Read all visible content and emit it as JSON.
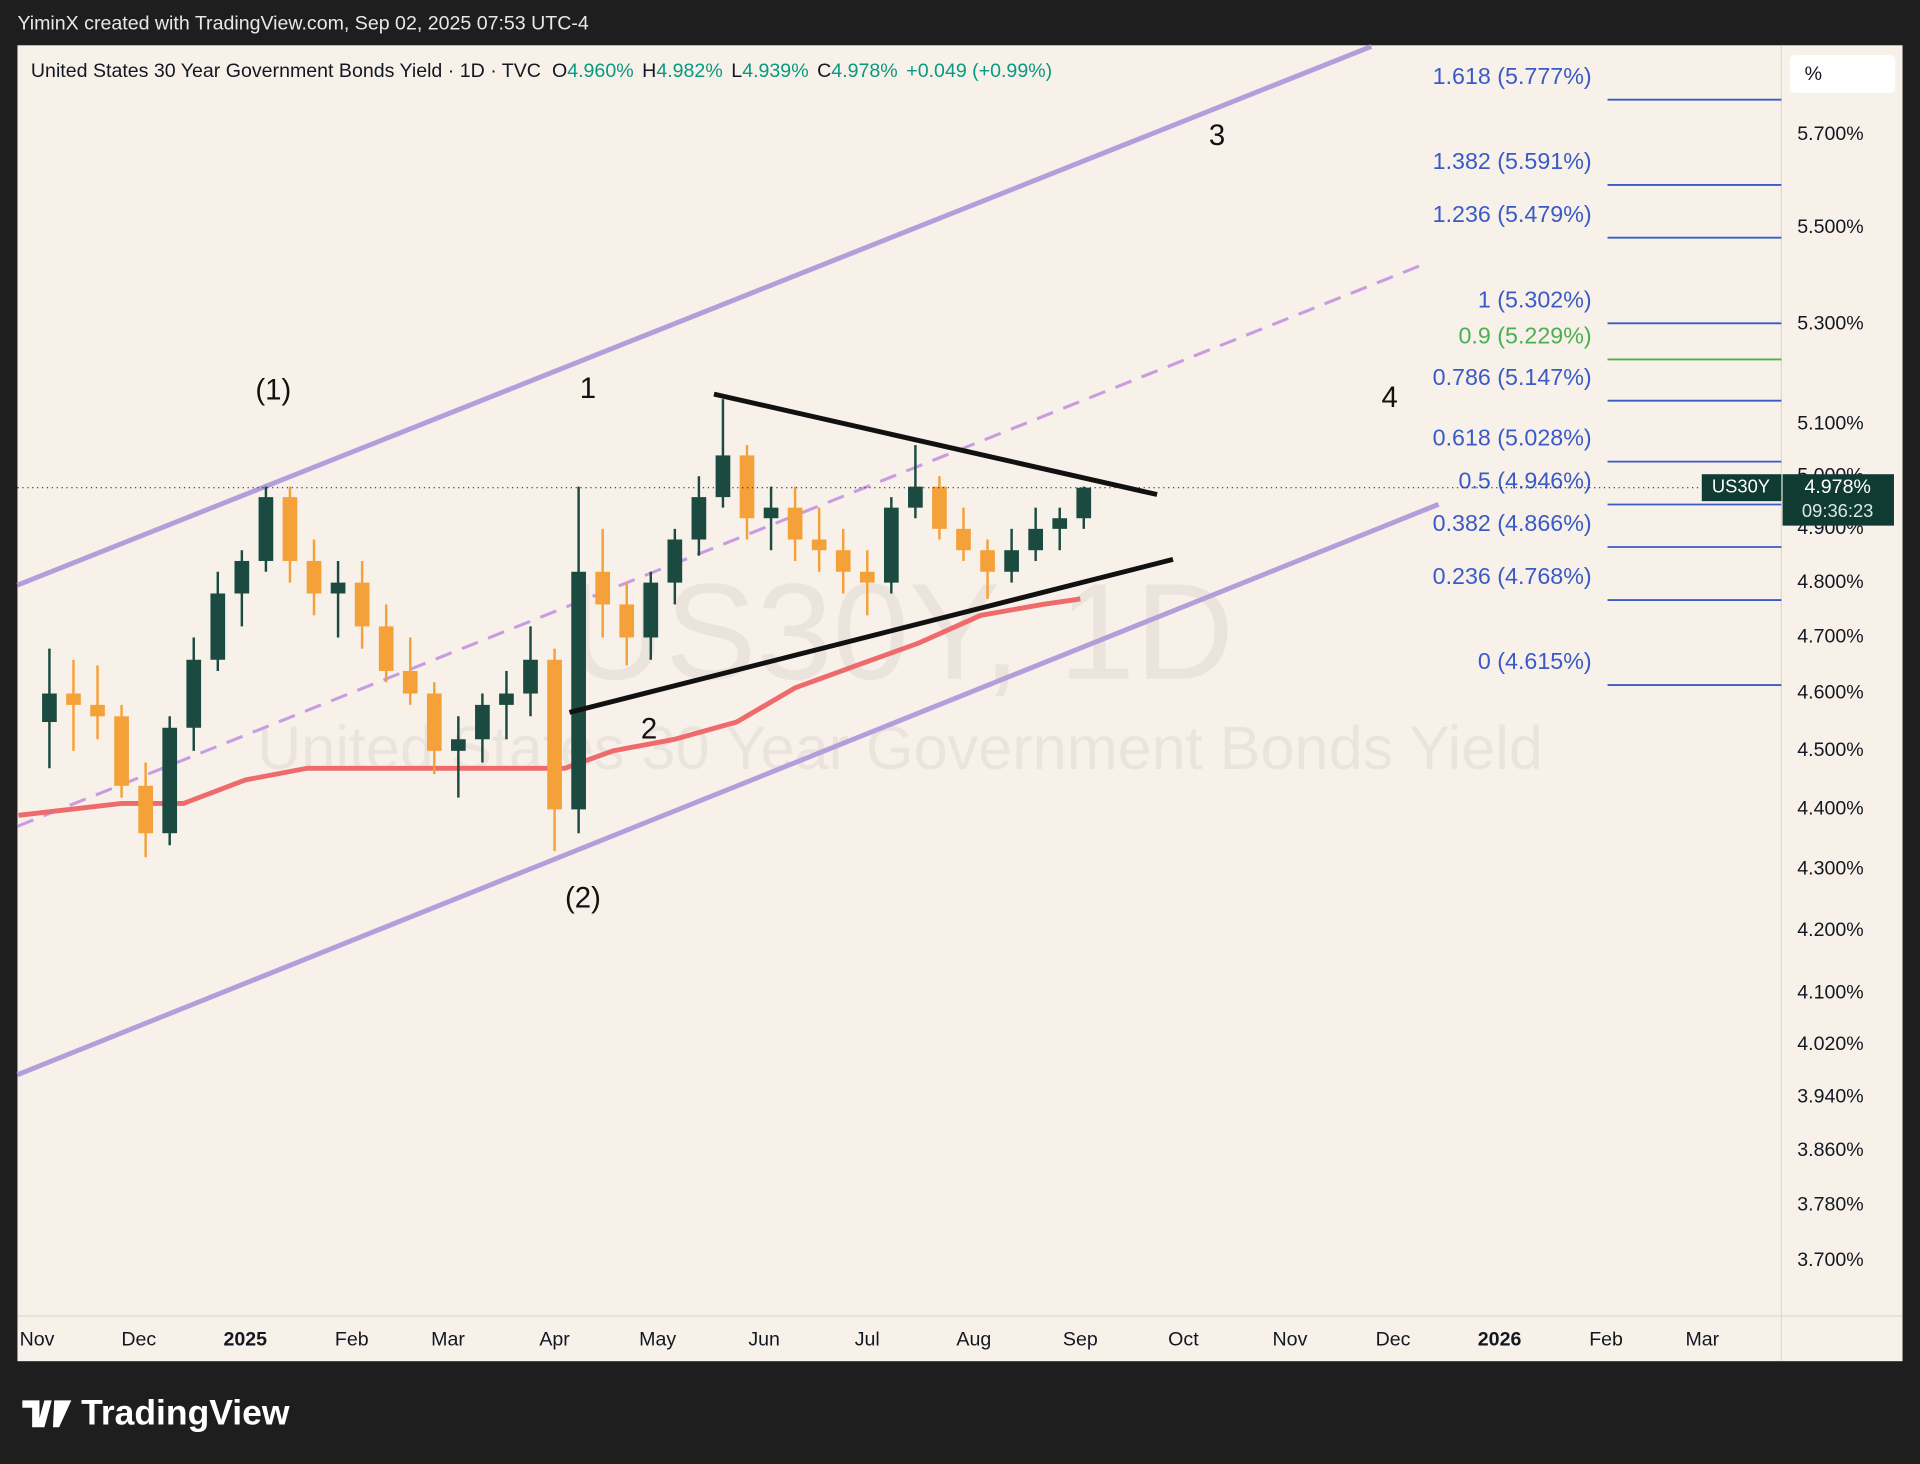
{
  "header": {
    "credit": "YiminX created with TradingView.com, Sep 02, 2025 07:53 UTC-4"
  },
  "legend": {
    "symbol": "United States 30 Year Government Bonds Yield · 1D · TVC",
    "o_label": "O",
    "open": "4.960%",
    "h_label": "H",
    "high": "4.982%",
    "l_label": "L",
    "low": "4.939%",
    "c_label": "C",
    "close": "4.978%",
    "change": "+0.049 (+0.99%)"
  },
  "footer": {
    "brand": "TradingView"
  },
  "chart_data": {
    "type": "candlestick",
    "log": true,
    "grid": false,
    "unit": "%",
    "up_color": "#1b4a40",
    "down_color": "#f5a13a",
    "xlim": [
      -5.3,
      508
    ],
    "ylim": [
      3.623,
      5.896
    ],
    "x": [
      4,
      11,
      18,
      25,
      32,
      39,
      46,
      53,
      60,
      67,
      74,
      81,
      88,
      95,
      102,
      109,
      116,
      123,
      130,
      137,
      144,
      151,
      158,
      165,
      172,
      179,
      186,
      193,
      200,
      207,
      214,
      221,
      228,
      235,
      242,
      249,
      256,
      263,
      270,
      277,
      284,
      291,
      298,
      305
    ],
    "open": [
      4.55,
      4.6,
      4.58,
      4.56,
      4.44,
      4.36,
      4.54,
      4.66,
      4.78,
      4.84,
      4.96,
      4.84,
      4.78,
      4.8,
      4.72,
      4.64,
      4.6,
      4.5,
      4.52,
      4.58,
      4.6,
      4.66,
      4.4,
      4.82,
      4.76,
      4.7,
      4.8,
      4.88,
      4.96,
      5.04,
      4.92,
      4.94,
      4.88,
      4.86,
      4.82,
      4.8,
      4.94,
      4.98,
      4.9,
      4.86,
      4.82,
      4.86,
      4.9,
      4.92
    ],
    "high": [
      4.68,
      4.66,
      4.65,
      4.58,
      4.48,
      4.56,
      4.7,
      4.82,
      4.86,
      4.98,
      4.98,
      4.88,
      4.84,
      4.84,
      4.76,
      4.7,
      4.62,
      4.56,
      4.6,
      4.64,
      4.72,
      4.68,
      4.98,
      4.9,
      4.8,
      4.82,
      4.9,
      5.0,
      5.15,
      5.06,
      4.98,
      4.98,
      4.94,
      4.9,
      4.86,
      4.96,
      5.06,
      5.0,
      4.94,
      4.88,
      4.9,
      4.94,
      4.94,
      4.98
    ],
    "low": [
      4.47,
      4.5,
      4.52,
      4.42,
      4.32,
      4.34,
      4.5,
      4.64,
      4.72,
      4.82,
      4.8,
      4.74,
      4.7,
      4.68,
      4.62,
      4.58,
      4.46,
      4.42,
      4.48,
      4.52,
      4.56,
      4.33,
      4.36,
      4.7,
      4.65,
      4.66,
      4.76,
      4.85,
      4.94,
      4.88,
      4.86,
      4.84,
      4.82,
      4.78,
      4.74,
      4.78,
      4.92,
      4.88,
      4.84,
      4.77,
      4.8,
      4.84,
      4.86,
      4.9
    ],
    "close": [
      4.6,
      4.58,
      4.56,
      4.44,
      4.36,
      4.54,
      4.66,
      4.78,
      4.84,
      4.96,
      4.84,
      4.78,
      4.8,
      4.72,
      4.64,
      4.6,
      4.5,
      4.52,
      4.58,
      4.6,
      4.66,
      4.4,
      4.82,
      4.76,
      4.7,
      4.8,
      4.88,
      4.96,
      5.04,
      4.92,
      4.94,
      4.88,
      4.86,
      4.82,
      4.8,
      4.94,
      4.98,
      4.9,
      4.86,
      4.82,
      4.86,
      4.9,
      4.92,
      4.978
    ],
    "moving_average": {
      "color": "#ef6a6a",
      "x": [
        -5,
        25,
        43,
        61,
        79,
        97,
        118,
        139,
        154,
        168,
        186,
        204,
        221,
        239,
        257,
        275,
        293,
        304
      ],
      "values": [
        4.39,
        4.41,
        4.41,
        4.45,
        4.47,
        4.47,
        4.47,
        4.47,
        4.47,
        4.5,
        4.52,
        4.55,
        4.61,
        4.65,
        4.69,
        4.74,
        4.76,
        4.77
      ]
    },
    "fib_levels": [
      {
        "label": "1.618 (5.777%)",
        "value": 5.777,
        "color": "#3a5bc7"
      },
      {
        "label": "1.382 (5.591%)",
        "value": 5.591,
        "color": "#3a5bc7"
      },
      {
        "label": "1.236 (5.479%)",
        "value": 5.479,
        "color": "#3a5bc7"
      },
      {
        "label": "1 (5.302%)",
        "value": 5.302,
        "color": "#3a5bc7"
      },
      {
        "label": "0.9 (5.229%)",
        "value": 5.229,
        "color": "#4caf50"
      },
      {
        "label": "0.786 (5.147%)",
        "value": 5.147,
        "color": "#3a5bc7"
      },
      {
        "label": "0.618 (5.028%)",
        "value": 5.028,
        "color": "#3a5bc7"
      },
      {
        "label": "0.5 (4.946%)",
        "value": 4.946,
        "color": "#3a5bc7"
      },
      {
        "label": "0.382 (4.866%)",
        "value": 4.866,
        "color": "#3a5bc7"
      },
      {
        "label": "0.236 (4.768%)",
        "value": 4.768,
        "color": "#3a5bc7"
      },
      {
        "label": "0 (4.615%)",
        "value": 4.615,
        "color": "#3a5bc7"
      }
    ],
    "wave_labels": [
      "(1)",
      "1",
      "2",
      "(2)",
      "3",
      "4"
    ],
    "watermark": {
      "symbol": "US30Y, 1D",
      "name": "United States 30 Year Government Bonds Yield"
    },
    "last_price": {
      "symbol": "US30Y",
      "value": 4.978,
      "label": "4.978%",
      "countdown": "09:36:23"
    },
    "yticks": [
      {
        "value": 5.7,
        "label": "5.700%"
      },
      {
        "value": 5.5,
        "label": "5.500%"
      },
      {
        "value": 5.3,
        "label": "5.300%"
      },
      {
        "value": 5.1,
        "label": "5.100%"
      },
      {
        "value": 5.0,
        "label": "5.000%"
      },
      {
        "value": 4.9,
        "label": "4.900%"
      },
      {
        "value": 4.8,
        "label": "4.800%"
      },
      {
        "value": 4.7,
        "label": "4.700%"
      },
      {
        "value": 4.6,
        "label": "4.600%"
      },
      {
        "value": 4.5,
        "label": "4.500%"
      },
      {
        "value": 4.4,
        "label": "4.400%"
      },
      {
        "value": 4.3,
        "label": "4.300%"
      },
      {
        "value": 4.2,
        "label": "4.200%"
      },
      {
        "value": 4.1,
        "label": "4.100%"
      },
      {
        "value": 4.02,
        "label": "4.020%"
      },
      {
        "value": 3.94,
        "label": "3.940%"
      },
      {
        "value": 3.86,
        "label": "3.860%"
      },
      {
        "value": 3.78,
        "label": "3.780%"
      },
      {
        "value": 3.7,
        "label": "3.700%"
      }
    ],
    "xticks": [
      {
        "value": 0,
        "label": "Nov"
      },
      {
        "value": 30,
        "label": "Dec"
      },
      {
        "value": 61,
        "label": "2025",
        "bold": true
      },
      {
        "value": 92,
        "label": "Feb"
      },
      {
        "value": 120,
        "label": "Mar"
      },
      {
        "value": 151,
        "label": "Apr"
      },
      {
        "value": 181,
        "label": "May"
      },
      {
        "value": 212,
        "label": "Jun"
      },
      {
        "value": 242,
        "label": "Jul"
      },
      {
        "value": 273,
        "label": "Aug"
      },
      {
        "value": 304,
        "label": "Sep"
      },
      {
        "value": 334,
        "label": "Oct"
      },
      {
        "value": 365,
        "label": "Nov"
      },
      {
        "value": 395,
        "label": "Dec"
      },
      {
        "value": 426,
        "label": "2026",
        "bold": true
      },
      {
        "value": 457,
        "label": "Feb"
      },
      {
        "value": 485,
        "label": "Mar"
      }
    ]
  }
}
